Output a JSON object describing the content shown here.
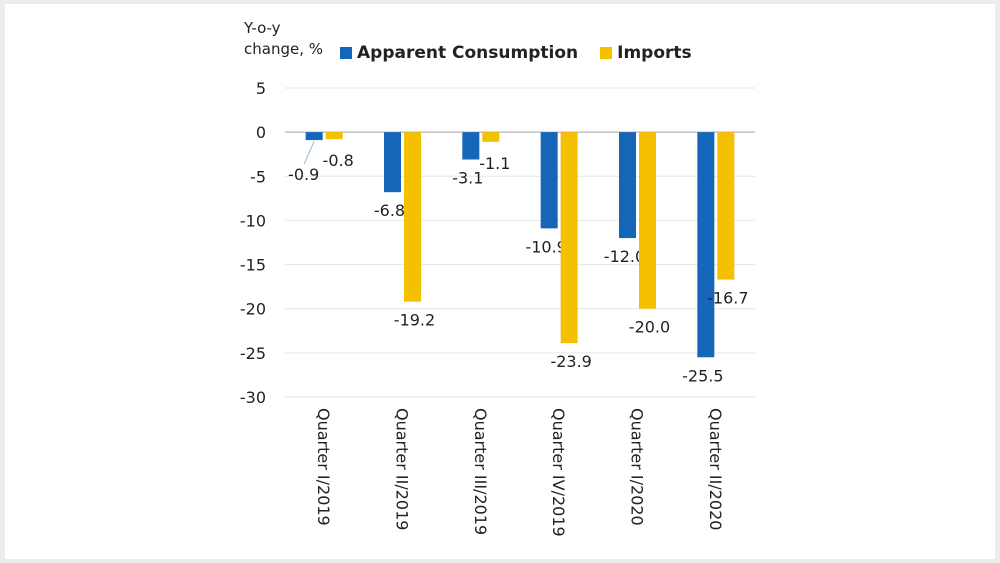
{
  "chart_data": {
    "type": "bar",
    "ylabel": "Y-o-y\nchange, %",
    "ylim": [
      -30,
      5
    ],
    "yticks": [
      5,
      0,
      -5,
      -10,
      -15,
      -20,
      -25,
      -30
    ],
    "categories": [
      "Quarter I/2019",
      "Quarter II/2019",
      "Quarter III/2019",
      "Quarter IV/2019",
      "Quarter I/2020",
      "Quarter II/2020"
    ],
    "series": [
      {
        "name": "Apparent Consumption",
        "color": "#1565b8",
        "values": [
          -0.9,
          -6.8,
          -3.1,
          -10.9,
          -12.0,
          -25.5
        ],
        "labels": [
          "-0.9",
          "-6.8",
          "-3.1",
          "-10.9",
          "-12.0",
          "-25.5"
        ]
      },
      {
        "name": "Imports",
        "color": "#f5c000",
        "values": [
          -0.8,
          -19.2,
          -1.1,
          -23.9,
          -20.0,
          -16.7
        ],
        "labels": [
          "-0.8",
          "-19.2",
          "-1.1",
          "-23.9",
          "-20.0",
          "-16.7"
        ]
      }
    ],
    "grid": true,
    "legend_position": "top"
  }
}
